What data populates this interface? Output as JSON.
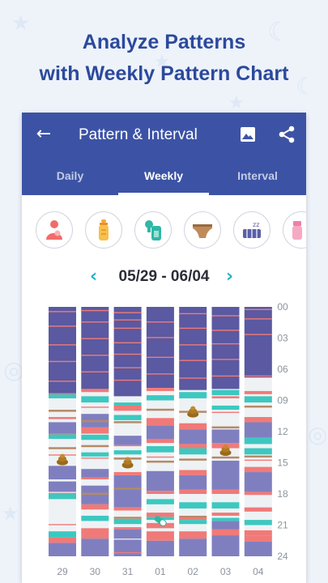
{
  "headline": {
    "line1": "Analyze Patterns",
    "line2": "with Weekly Pattern Chart"
  },
  "appbar": {
    "title": "Pattern & Interval",
    "back_icon": "arrow-left-icon",
    "image_icon": "image-icon",
    "share_icon": "share-icon"
  },
  "tabs": [
    {
      "label": "Daily",
      "active": false
    },
    {
      "label": "Weekly",
      "active": true
    },
    {
      "label": "Interval",
      "active": false
    }
  ],
  "categories": [
    {
      "name": "breastfeed-icon",
      "color": "#f26b6b"
    },
    {
      "name": "bottle-icon",
      "color": "#f2a833"
    },
    {
      "name": "pumping-icon",
      "color": "#2fb8a5"
    },
    {
      "name": "diaper-icon",
      "color": "#b07a4a"
    },
    {
      "name": "sleep-icon",
      "color": "#5b5ea8"
    },
    {
      "name": "medicine-icon",
      "color": "#f07fa6"
    }
  ],
  "range": {
    "label": "05/29 - 06/04",
    "prev_icon": "chevron-left-icon",
    "next_icon": "chevron-right-icon"
  },
  "colors": {
    "sleep": "#5a59a1",
    "sleep_light": "#7f7fc0",
    "feed": "#f07a78",
    "pump": "#3cc8c0",
    "diaper": "#b58a67",
    "empty": "#eef2f4"
  },
  "chart_data": {
    "type": "heatmap",
    "x_categories": [
      "29",
      "30",
      "31",
      "01",
      "02",
      "03",
      "04"
    ],
    "y_ticks": [
      "00",
      "03",
      "06",
      "09",
      "12",
      "15",
      "18",
      "21",
      "24"
    ],
    "y_range": [
      0,
      24
    ],
    "days": [
      {
        "sleep": [
          [
            0,
            8.4
          ],
          [
            11.1,
            12.2
          ],
          [
            15.3,
            16.6
          ],
          [
            16.8,
            17.8
          ],
          [
            22.7,
            24
          ]
        ],
        "feed": [
          [
            0.4,
            0.45
          ],
          [
            1.8,
            1.85
          ],
          [
            3.6,
            3.65
          ],
          [
            5.2,
            5.25
          ],
          [
            7.1,
            7.15
          ],
          [
            8.3,
            8.4
          ],
          [
            10.6,
            10.8
          ],
          [
            12.3,
            12.4
          ],
          [
            14.2,
            14.25
          ],
          [
            17.9,
            18.0
          ],
          [
            20.9,
            21.0
          ],
          [
            22.2,
            22.7
          ]
        ],
        "pump": [
          [
            8.4,
            8.8
          ],
          [
            12.2,
            12.7
          ],
          [
            18.0,
            18.5
          ],
          [
            21.6,
            22.2
          ]
        ],
        "diaper": [
          [
            9.9,
            10.0
          ],
          [
            13.5,
            13.6
          ]
        ],
        "icons": [
          {
            "type": "poop",
            "t": 14.7
          }
        ]
      },
      {
        "sleep": [
          [
            0,
            7.9
          ],
          [
            10.3,
            11.6
          ],
          [
            15.6,
            16.4
          ],
          [
            17.2,
            19.0
          ],
          [
            22.3,
            24
          ]
        ],
        "feed": [
          [
            0.3,
            0.35
          ],
          [
            1.4,
            1.45
          ],
          [
            3.0,
            3.05
          ],
          [
            4.6,
            4.65
          ],
          [
            6.2,
            6.25
          ],
          [
            7.9,
            8.2
          ],
          [
            9.6,
            9.7
          ],
          [
            11.6,
            12.2
          ],
          [
            14.5,
            14.6
          ],
          [
            16.4,
            16.6
          ],
          [
            19.0,
            19.5
          ],
          [
            21.3,
            22.3
          ]
        ],
        "pump": [
          [
            8.6,
            9.2
          ],
          [
            12.3,
            12.8
          ],
          [
            14.0,
            14.4
          ],
          [
            20.1,
            20.6
          ]
        ],
        "diaper": [
          [
            10.9,
            11.0
          ],
          [
            13.3,
            13.4
          ],
          [
            17.9,
            18.0
          ]
        ],
        "icons": []
      },
      {
        "sleep": [
          [
            0,
            8.6
          ],
          [
            12.4,
            13.3
          ],
          [
            16.2,
            19.3
          ],
          [
            21.4,
            22.3
          ],
          [
            22.4,
            24
          ]
        ],
        "feed": [
          [
            0.5,
            0.55
          ],
          [
            1.2,
            1.25
          ],
          [
            2.0,
            2.05
          ],
          [
            3.4,
            3.45
          ],
          [
            4.5,
            4.55
          ],
          [
            5.8,
            5.85
          ],
          [
            7.0,
            7.05
          ],
          [
            9.5,
            10.0
          ],
          [
            13.3,
            13.4
          ],
          [
            15.9,
            16.2
          ],
          [
            19.3,
            19.6
          ],
          [
            21.2,
            21.4
          ],
          [
            23.6,
            23.7
          ]
        ],
        "pump": [
          [
            9.2,
            9.8
          ],
          [
            10.4,
            10.9
          ],
          [
            13.8,
            14.2
          ],
          [
            20.4,
            20.9
          ]
        ],
        "diaper": [
          [
            11.0,
            11.1
          ],
          [
            14.5,
            14.6
          ],
          [
            17.4,
            17.5
          ],
          [
            20.2,
            20.3
          ]
        ],
        "icons": [
          {
            "type": "poop",
            "t": 15.0
          }
        ]
      },
      {
        "sleep": [
          [
            0,
            7.8
          ],
          [
            11.4,
            12.7
          ],
          [
            15.8,
            17.7
          ],
          [
            22.5,
            24
          ]
        ],
        "feed": [
          [
            1.4,
            1.45
          ],
          [
            2.9,
            2.95
          ],
          [
            4.8,
            4.85
          ],
          [
            6.4,
            6.45
          ],
          [
            7.8,
            8.1
          ],
          [
            10.7,
            11.4
          ],
          [
            12.7,
            13.1
          ],
          [
            14.4,
            14.5
          ],
          [
            17.7,
            18.0
          ],
          [
            19.8,
            20.2
          ],
          [
            20.8,
            21.3
          ],
          [
            21.6,
            22.5
          ]
        ],
        "pump": [
          [
            8.5,
            9.0
          ],
          [
            13.4,
            14.0
          ],
          [
            18.5,
            19.0
          ],
          [
            20.2,
            20.5
          ]
        ],
        "diaper": [
          [
            9.8,
            9.9
          ],
          [
            14.8,
            14.9
          ]
        ],
        "icons": [
          {
            "type": "medicine",
            "t": 20.6
          }
        ]
      },
      {
        "sleep": [
          [
            0,
            8.0
          ],
          [
            11.8,
            13.2
          ],
          [
            16.2,
            17.6
          ],
          [
            22.3,
            24
          ]
        ],
        "feed": [
          [
            0.6,
            0.65
          ],
          [
            2.0,
            2.05
          ],
          [
            3.6,
            3.65
          ],
          [
            5.1,
            5.15
          ],
          [
            6.8,
            6.85
          ],
          [
            11.2,
            11.8
          ],
          [
            13.2,
            13.6
          ],
          [
            15.7,
            16.2
          ],
          [
            17.6,
            18.0
          ],
          [
            20.3,
            20.5
          ],
          [
            21.6,
            22.3
          ]
        ],
        "pump": [
          [
            8.2,
            8.8
          ],
          [
            13.6,
            14.2
          ],
          [
            18.8,
            19.4
          ],
          [
            20.5,
            20.9
          ]
        ],
        "diaper": [
          [
            10.0,
            10.1
          ],
          [
            14.6,
            14.7
          ],
          [
            20.1,
            20.2
          ]
        ],
        "icons": [
          {
            "type": "poop",
            "t": 10.1
          }
        ]
      },
      {
        "sleep": [
          [
            0,
            7.9
          ],
          [
            11.8,
            13.1
          ],
          [
            14.8,
            17.6
          ],
          [
            20.6,
            21.4
          ],
          [
            21.4,
            24
          ]
        ],
        "feed": [
          [
            0.8,
            0.85
          ],
          [
            2.2,
            2.25
          ],
          [
            3.5,
            3.55
          ],
          [
            5.0,
            5.05
          ],
          [
            6.6,
            6.65
          ],
          [
            8.6,
            8.8
          ],
          [
            10.1,
            10.2
          ],
          [
            13.1,
            13.6
          ],
          [
            17.6,
            18.0
          ],
          [
            19.8,
            20.1
          ],
          [
            21.4,
            22.0
          ]
        ],
        "pump": [
          [
            8.0,
            8.5
          ],
          [
            9.5,
            9.9
          ],
          [
            18.8,
            19.4
          ],
          [
            20.3,
            20.6
          ]
        ],
        "diaper": [
          [
            11.5,
            11.6
          ],
          [
            14.4,
            14.5
          ]
        ],
        "icons": [
          {
            "type": "poop",
            "t": 13.8
          }
        ]
      },
      {
        "sleep": [
          [
            0,
            6.8
          ],
          [
            11.1,
            12.6
          ],
          [
            15.9,
            17.8
          ],
          [
            22.6,
            24
          ]
        ],
        "feed": [
          [
            0.2,
            0.25
          ],
          [
            1.1,
            1.15
          ],
          [
            2.6,
            2.65
          ],
          [
            6.6,
            6.65
          ],
          [
            8.1,
            8.4
          ],
          [
            10.6,
            11.1
          ],
          [
            14.7,
            14.8
          ],
          [
            15.4,
            15.9
          ],
          [
            17.8,
            18.1
          ],
          [
            19.3,
            19.7
          ],
          [
            21.5,
            22.0
          ],
          [
            22.0,
            22.6
          ]
        ],
        "pump": [
          [
            8.6,
            9.2
          ],
          [
            12.6,
            13.2
          ],
          [
            13.6,
            14.2
          ],
          [
            20.5,
            21.0
          ]
        ],
        "diaper": [
          [
            9.5,
            9.6
          ],
          [
            14.3,
            14.4
          ]
        ],
        "icons": []
      }
    ]
  }
}
